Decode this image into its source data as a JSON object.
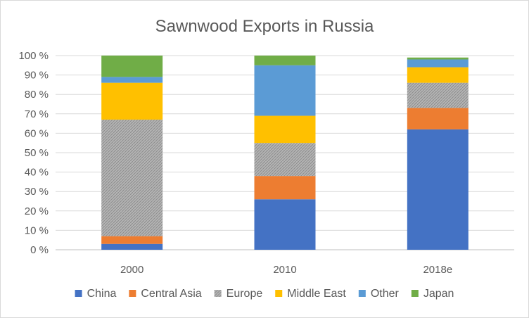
{
  "chart_data": {
    "type": "bar",
    "stacked": true,
    "title": "Sawnwood Exports in Russia",
    "xlabel": "",
    "ylabel": "",
    "categories": [
      "2000",
      "2010",
      "2018e"
    ],
    "y_ticks": [
      "0 %",
      "10 %",
      "20 %",
      "30 %",
      "40 %",
      "50 %",
      "60 %",
      "70 %",
      "80 %",
      "90 %",
      "100 %"
    ],
    "ylim": [
      0,
      100
    ],
    "grid": true,
    "legend_position": "bottom",
    "series": [
      {
        "name": "China",
        "color": "#4472C4",
        "pattern": "solid",
        "values": [
          3,
          26,
          62
        ]
      },
      {
        "name": "Central Asia",
        "color": "#ED7D31",
        "pattern": "solid",
        "values": [
          4,
          12,
          11
        ]
      },
      {
        "name": "Europe",
        "color": "#A5A5A5",
        "pattern": "hatched",
        "values": [
          60,
          17,
          13
        ]
      },
      {
        "name": "Middle East",
        "color": "#FFC000",
        "pattern": "solid",
        "values": [
          19,
          14,
          8
        ]
      },
      {
        "name": "Other",
        "color": "#5B9BD5",
        "pattern": "solid",
        "values": [
          3,
          26,
          4
        ]
      },
      {
        "name": "Japan",
        "color": "#70AD47",
        "pattern": "solid",
        "values": [
          11,
          5,
          1
        ]
      }
    ]
  }
}
